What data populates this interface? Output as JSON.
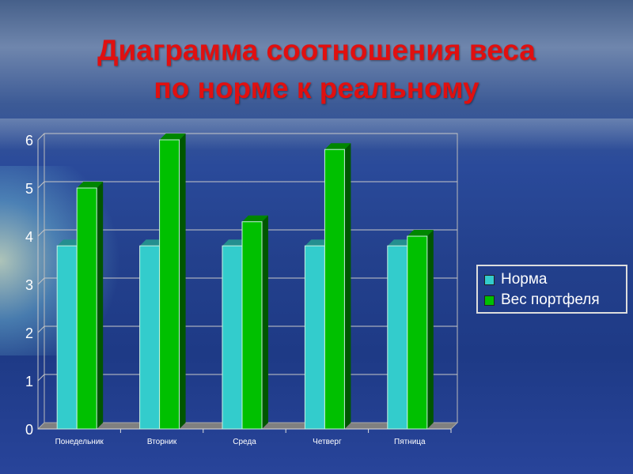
{
  "title_lines": [
    "Диаграмма соотношения веса",
    "по норме к реальному"
  ],
  "chart_data": {
    "type": "bar",
    "categories": [
      "Понедельник",
      "Вторник",
      "Среда",
      "Четверг",
      "Пятница"
    ],
    "series": [
      {
        "name": "Норма",
        "values": [
          3.8,
          3.8,
          3.8,
          3.8,
          3.8
        ],
        "color": "#33cccc"
      },
      {
        "name": "Вес портфеля",
        "values": [
          5,
          6,
          4.3,
          5.8,
          4
        ],
        "color": "#00c000"
      }
    ],
    "ylim": [
      0,
      6
    ],
    "yticks": [
      "0",
      "1",
      "2",
      "3",
      "4",
      "5",
      "6"
    ],
    "grid": true,
    "legend": "right",
    "style": "3d-column"
  }
}
